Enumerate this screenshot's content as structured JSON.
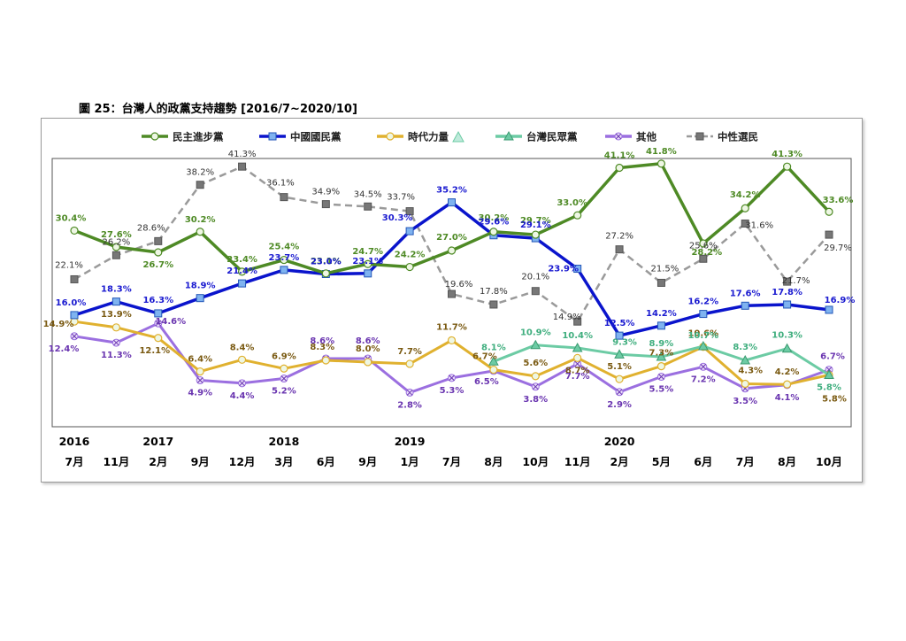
{
  "caption": "圖 25：台灣人的政黨支持趨勢 [2016/7~2020/10]",
  "chart_data": {
    "type": "line",
    "x_labels": [
      "7月",
      "11月",
      "2月",
      "9月",
      "12月",
      "3月",
      "6月",
      "9月",
      "1月",
      "7月",
      "8月",
      "10月",
      "11月",
      "2月",
      "5月",
      "6月",
      "7月",
      "8月",
      "10月"
    ],
    "year_labels": [
      {
        "index": 0,
        "year": "2016"
      },
      {
        "index": 2,
        "year": "2017"
      },
      {
        "index": 5,
        "year": "2018"
      },
      {
        "index": 8,
        "year": "2019"
      },
      {
        "index": 13,
        "year": "2020"
      }
    ],
    "ylim": [
      0,
      46
    ],
    "grid": false,
    "legend_position": "top",
    "series": [
      {
        "name": "民主進步黨",
        "color": "#4e8a25",
        "label_color": "#4e8a25",
        "marker": "circle",
        "dashed": false,
        "width": 3.5,
        "values": [
          30.4,
          27.6,
          26.7,
          30.2,
          23.4,
          25.4,
          23.1,
          24.7,
          24.2,
          27.0,
          30.2,
          29.7,
          33.0,
          41.1,
          41.8,
          28.2,
          34.2,
          41.3,
          33.6
        ]
      },
      {
        "name": "中國國民黨",
        "color": "#0a14cc",
        "label_color": "#1a1ad0",
        "marker": "square",
        "dashed": false,
        "width": 3.5,
        "values": [
          16.0,
          18.3,
          16.3,
          18.9,
          21.4,
          23.7,
          23.0,
          23.1,
          30.3,
          35.2,
          29.6,
          29.1,
          23.9,
          12.5,
          14.2,
          16.2,
          17.6,
          17.8,
          16.9
        ]
      },
      {
        "name": "時代力量",
        "color": "#e0b12f",
        "label_color": "#7a5a12",
        "marker": "circle",
        "dashed": false,
        "width": 3,
        "values": [
          14.9,
          13.9,
          12.1,
          6.4,
          8.4,
          6.9,
          8.3,
          8.0,
          7.7,
          11.7,
          6.7,
          5.6,
          8.7,
          5.1,
          7.3,
          10.6,
          4.3,
          4.2,
          5.8
        ]
      },
      {
        "name": "台灣民眾黨",
        "color": "#6ccba4",
        "label_color": "#3fae7e",
        "marker": "triangle",
        "dashed": false,
        "width": 3,
        "values": [
          null,
          null,
          null,
          null,
          null,
          null,
          null,
          null,
          null,
          null,
          8.1,
          10.9,
          10.4,
          9.3,
          8.9,
          10.7,
          8.3,
          10.3,
          5.8
        ]
      },
      {
        "name": "其他",
        "color": "#9b6fe0",
        "label_color": "#6a35b0",
        "marker": "cross",
        "dashed": false,
        "width": 3,
        "values": [
          12.4,
          11.3,
          14.6,
          4.9,
          4.4,
          5.2,
          8.6,
          8.6,
          2.8,
          5.3,
          6.5,
          3.8,
          7.7,
          2.9,
          5.5,
          7.2,
          3.5,
          4.1,
          6.7
        ]
      },
      {
        "name": "中性選民",
        "color": "#9a9a9a",
        "label_color": "#333333",
        "marker": "square-dark",
        "dashed": true,
        "width": 2.5,
        "values": [
          22.1,
          26.2,
          28.6,
          38.2,
          41.3,
          36.1,
          34.9,
          34.5,
          33.7,
          19.6,
          17.8,
          20.1,
          14.9,
          27.2,
          21.5,
          25.6,
          31.6,
          21.7,
          29.7
        ]
      }
    ]
  }
}
